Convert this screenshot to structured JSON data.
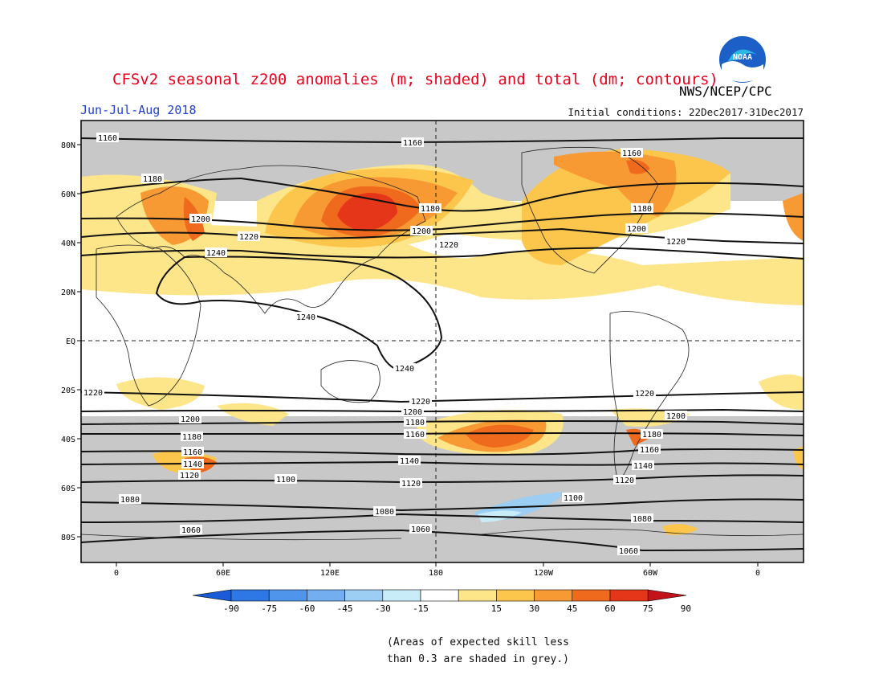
{
  "header": {
    "title": "CFSv2 seasonal z200 anomalies (m; shaded) and total (dm; contours)",
    "period": "Jun-Jul-Aug 2018",
    "initial_conditions": "Initial conditions: 22Dec2017-31Dec2017",
    "agency": "NWS/NCEP/CPC",
    "logo_text": "NOAA"
  },
  "map": {
    "lat_labels": [
      "80N",
      "60N",
      "40N",
      "20N",
      "EQ",
      "20S",
      "40S",
      "60S",
      "80S"
    ],
    "lon_labels": [
      "0",
      "60E",
      "120E",
      "180",
      "120W",
      "60W",
      "0"
    ],
    "contour_labels": [
      "1160",
      "1160",
      "1160",
      "1180",
      "1180",
      "1180",
      "1180",
      "1180",
      "1180",
      "1200",
      "1200",
      "1200",
      "1200",
      "1200",
      "1220",
      "1220",
      "1220",
      "1220",
      "1240",
      "1240",
      "1240",
      "1220",
      "1200",
      "1160",
      "1140",
      "1120",
      "1100",
      "1080",
      "1060",
      "1140",
      "1120",
      "1100",
      "1080",
      "1060",
      "1140",
      "1120",
      "1100",
      "1080",
      "1060"
    ]
  },
  "legend": {
    "ticks": [
      "-90",
      "-75",
      "-60",
      "-45",
      "-30",
      "-15",
      "15",
      "30",
      "45",
      "60",
      "75",
      "90"
    ],
    "colors": [
      "#1a5cd8",
      "#2e78e6",
      "#4f95ec",
      "#72aef0",
      "#9ccdf3",
      "#c8ecf8",
      "#ffffff",
      "#fde58a",
      "#fbc64b",
      "#f89a33",
      "#f06a1e",
      "#e6361a",
      "#c0131a"
    ]
  },
  "notes": {
    "line1": "(Areas of expected skill less",
    "line2": "than 0.3 are shaded in grey.)"
  }
}
